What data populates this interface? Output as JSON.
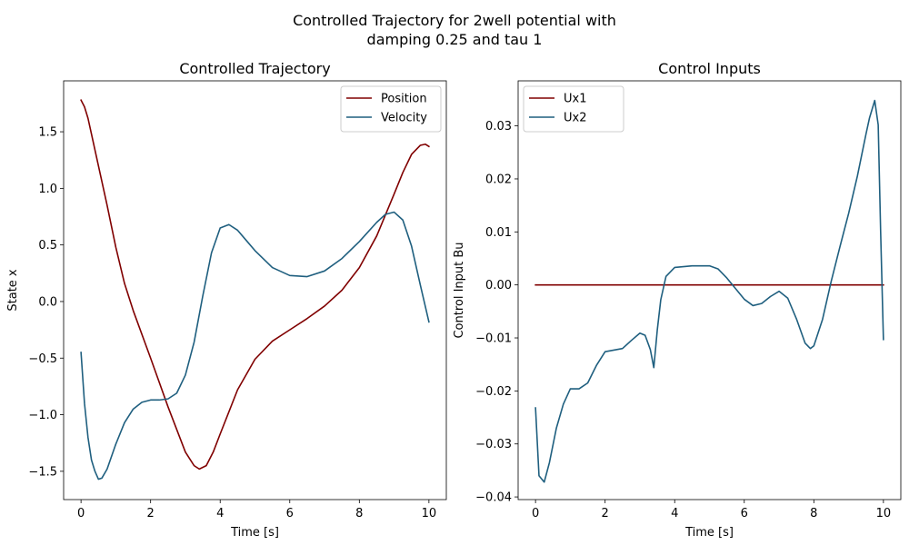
{
  "figure": {
    "title_line1": "Controlled Trajectory for 2well potential with",
    "title_line2": "damping 0.25 and tau 1"
  },
  "chart_data": [
    {
      "type": "line",
      "title": "Controlled Trajectory",
      "xlabel": "Time [s]",
      "ylabel": "State x",
      "xlim": [
        -0.5,
        10.5
      ],
      "ylim": [
        -1.75,
        1.95
      ],
      "xticks": [
        0,
        2,
        4,
        6,
        8,
        10
      ],
      "xtick_labels": [
        "0",
        "2",
        "4",
        "6",
        "8",
        "10"
      ],
      "yticks": [
        -1.5,
        -1.0,
        -0.5,
        0.0,
        0.5,
        1.0,
        1.5
      ],
      "ytick_labels": [
        "−1.5",
        "−1.0",
        "−0.5",
        "0.0",
        "0.5",
        "1.0",
        "1.5"
      ],
      "grid": false,
      "legend_position": "top-right",
      "series": [
        {
          "name": "Position",
          "color": "#800000",
          "x": [
            0,
            0.1,
            0.2,
            0.3,
            0.5,
            0.75,
            1.0,
            1.25,
            1.5,
            2.0,
            2.5,
            3.0,
            3.25,
            3.4,
            3.6,
            3.8,
            4.0,
            4.5,
            5.0,
            5.5,
            6.0,
            6.5,
            7.0,
            7.5,
            8.0,
            8.5,
            9.0,
            9.25,
            9.5,
            9.75,
            9.9,
            10.0
          ],
          "y": [
            1.78,
            1.72,
            1.62,
            1.48,
            1.2,
            0.85,
            0.48,
            0.16,
            -0.08,
            -0.5,
            -0.93,
            -1.33,
            -1.45,
            -1.48,
            -1.45,
            -1.33,
            -1.17,
            -0.78,
            -0.51,
            -0.35,
            -0.25,
            -0.15,
            -0.04,
            0.1,
            0.3,
            0.58,
            0.95,
            1.14,
            1.3,
            1.38,
            1.39,
            1.37
          ]
        },
        {
          "name": "Velocity",
          "color": "#1f5f7f",
          "x": [
            0,
            0.1,
            0.2,
            0.3,
            0.4,
            0.5,
            0.6,
            0.75,
            1.0,
            1.25,
            1.5,
            1.75,
            2.0,
            2.25,
            2.5,
            2.75,
            3.0,
            3.25,
            3.5,
            3.75,
            4.0,
            4.25,
            4.5,
            4.75,
            5.0,
            5.5,
            6.0,
            6.5,
            7.0,
            7.5,
            8.0,
            8.5,
            8.75,
            9.0,
            9.25,
            9.5,
            9.75,
            10.0
          ],
          "y": [
            -0.45,
            -0.9,
            -1.2,
            -1.4,
            -1.5,
            -1.57,
            -1.56,
            -1.48,
            -1.26,
            -1.07,
            -0.95,
            -0.89,
            -0.87,
            -0.87,
            -0.86,
            -0.81,
            -0.65,
            -0.36,
            0.05,
            0.43,
            0.65,
            0.68,
            0.63,
            0.54,
            0.45,
            0.3,
            0.23,
            0.22,
            0.27,
            0.38,
            0.53,
            0.7,
            0.77,
            0.79,
            0.72,
            0.49,
            0.15,
            -0.18
          ]
        }
      ]
    },
    {
      "type": "line",
      "title": "Control Inputs",
      "xlabel": "Time [s]",
      "ylabel": "Control Input Bu",
      "xlim": [
        -0.5,
        10.5
      ],
      "ylim": [
        -0.0405,
        0.0385
      ],
      "xticks": [
        0,
        2,
        4,
        6,
        8,
        10
      ],
      "xtick_labels": [
        "0",
        "2",
        "4",
        "6",
        "8",
        "10"
      ],
      "yticks": [
        -0.04,
        -0.03,
        -0.02,
        -0.01,
        0.0,
        0.01,
        0.02,
        0.03
      ],
      "ytick_labels": [
        "−0.04",
        "−0.03",
        "−0.02",
        "−0.01",
        "0.00",
        "0.01",
        "0.02",
        "0.03"
      ],
      "grid": false,
      "legend_position": "top-left",
      "series": [
        {
          "name": "Ux1",
          "color": "#800000",
          "x": [
            0,
            10
          ],
          "y": [
            0.0,
            0.0
          ]
        },
        {
          "name": "Ux2",
          "color": "#1f5f7f",
          "x": [
            0,
            0.1,
            0.25,
            0.4,
            0.6,
            0.8,
            1.0,
            1.25,
            1.5,
            1.75,
            2.0,
            2.25,
            2.5,
            2.75,
            3.0,
            3.15,
            3.3,
            3.4,
            3.5,
            3.6,
            3.75,
            4.0,
            4.5,
            5.0,
            5.25,
            5.5,
            6.0,
            6.25,
            6.5,
            6.75,
            7.0,
            7.25,
            7.5,
            7.75,
            7.9,
            8.0,
            8.25,
            8.5,
            8.75,
            9.0,
            9.25,
            9.5,
            9.6,
            9.75,
            9.85,
            9.92,
            10.0
          ],
          "y": [
            -0.0232,
            -0.036,
            -0.0372,
            -0.0335,
            -0.027,
            -0.0225,
            -0.0196,
            -0.0196,
            -0.0185,
            -0.0152,
            -0.0126,
            -0.0123,
            -0.012,
            -0.0105,
            -0.0091,
            -0.0095,
            -0.0122,
            -0.0156,
            -0.0085,
            -0.0028,
            0.0016,
            0.0033,
            0.0036,
            0.0036,
            0.003,
            0.0013,
            -0.0027,
            -0.0039,
            -0.0035,
            -0.0022,
            -0.0012,
            -0.0025,
            -0.0064,
            -0.011,
            -0.012,
            -0.0115,
            -0.0065,
            0.0007,
            0.0072,
            0.0135,
            0.0205,
            0.0285,
            0.0315,
            0.0348,
            0.0302,
            0.01,
            -0.0103
          ]
        }
      ]
    }
  ]
}
